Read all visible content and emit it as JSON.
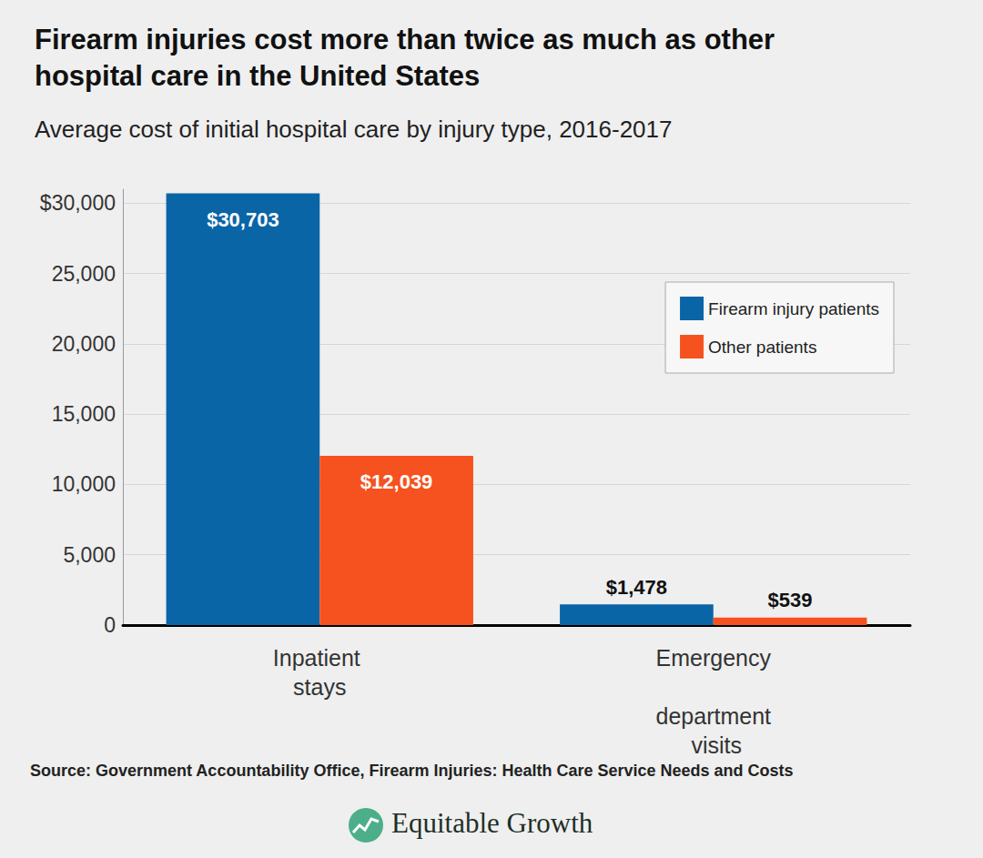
{
  "chart_data": {
    "type": "bar",
    "title": "Firearm injuries cost more than twice as much as other hospital care in the United States",
    "subtitle": "Average cost of initial hospital care by injury type, 2016-2017",
    "source": "Source: Government Accountability Office, Firearm Injuries: Health Care Service Needs and Costs",
    "logo": "Equitable Growth",
    "categories": [
      "Inpatient stays",
      "Emergency department visits"
    ],
    "series": [
      {
        "name": "Firearm injury patients",
        "color": "#0a65a6",
        "values": [
          30703,
          1478
        ],
        "value_labels": [
          "$30,703",
          "$1,478"
        ]
      },
      {
        "name": "Other patients",
        "color": "#f5521f",
        "values": [
          12039,
          539
        ],
        "value_labels": [
          "$12,039",
          "$539"
        ]
      }
    ],
    "ylim": [
      0,
      31000
    ],
    "yticks": [
      0,
      {
        "value": 5000,
        "label": "5,000"
      },
      {
        "value": 10000,
        "label": "10,000"
      },
      {
        "value": 15000,
        "label": "15,000"
      },
      {
        "value": 20000,
        "label": "20,000"
      },
      {
        "value": 25000,
        "label": "25,000"
      },
      {
        "value": 30000,
        "label": "$30,000"
      }
    ],
    "grid": true,
    "legend": "upper right",
    "data_labels": true
  }
}
